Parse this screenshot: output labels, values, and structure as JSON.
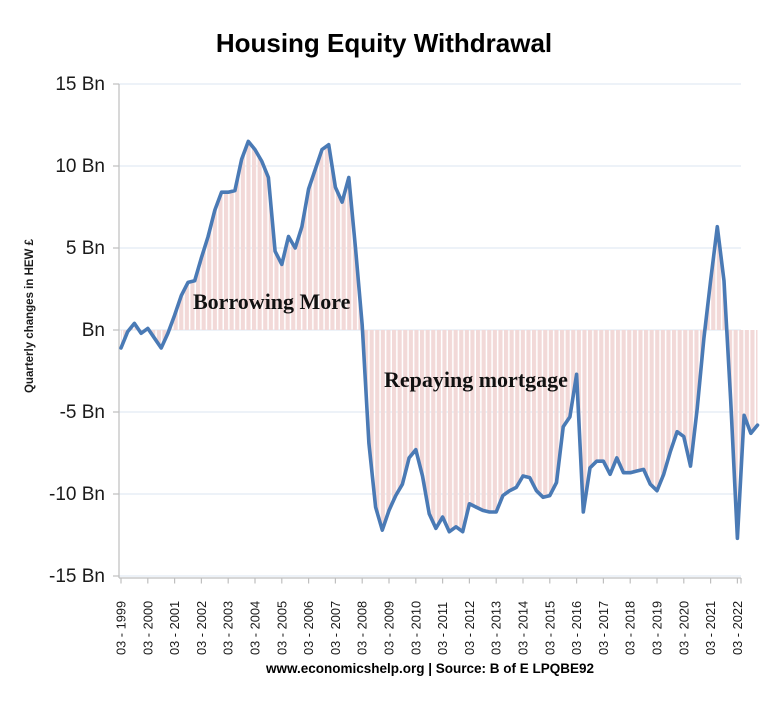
{
  "title": "Housing Equity Withdrawal",
  "footer": "www.economicshelp.org | Source: B of E LPQBE92",
  "chart_data": {
    "type": "line",
    "title": "Housing Equity Withdrawal",
    "ylabel": "Quarterly changes in HEW £",
    "ylim": [
      -15,
      15
    ],
    "grid": true,
    "legend": "none",
    "fill_style": "vertical pink hatch between line and zero",
    "ytick_values": [
      15,
      10,
      5,
      0,
      -5,
      -10,
      -15
    ],
    "ytick_labels": [
      "15  Bn",
      "10  Bn",
      "5  Bn",
      "Bn",
      "-5  Bn",
      "-10  Bn",
      "-15  Bn"
    ],
    "x_unit": "quarter",
    "x_start": "Q1 1999",
    "x_end": "Q4 2022",
    "xtick_every_n_points": 4,
    "xtick_labels": [
      "03 - 1999",
      "03 - 2000",
      "03 - 2001",
      "03 - 2002",
      "03 - 2003",
      "03 - 2004",
      "03 - 2005",
      "03 - 2006",
      "03 - 2007",
      "03 - 2008",
      "03 - 2009",
      "03 - 2010",
      "03 - 2011",
      "03 - 2012",
      "03 - 2013",
      "03 - 2014",
      "03 - 2015",
      "03 - 2016",
      "03 - 2017",
      "03 - 2018",
      "03 - 2019",
      "03 - 2020",
      "03 - 2021",
      "03 - 2022"
    ],
    "series": [
      {
        "name": "Quarterly HEW £Bn",
        "values": [
          -1.1,
          -0.1,
          0.4,
          -0.2,
          0.1,
          -0.5,
          -1.1,
          -0.2,
          0.9,
          2.1,
          2.9,
          3.0,
          4.4,
          5.7,
          7.3,
          8.4,
          8.4,
          8.5,
          10.4,
          11.5,
          11.0,
          10.3,
          9.3,
          4.8,
          4.0,
          5.7,
          5.0,
          6.3,
          8.6,
          9.8,
          11.0,
          11.3,
          8.7,
          7.8,
          9.3,
          5.0,
          0.3,
          -6.9,
          -10.8,
          -12.2,
          -11.0,
          -10.1,
          -9.4,
          -7.8,
          -7.3,
          -8.9,
          -11.2,
          -12.1,
          -11.4,
          -12.3,
          -12.0,
          -12.3,
          -10.6,
          -10.8,
          -11.0,
          -11.1,
          -11.1,
          -10.1,
          -9.8,
          -9.6,
          -8.9,
          -9.0,
          -9.8,
          -10.2,
          -10.1,
          -9.3,
          -5.9,
          -5.3,
          -2.7,
          -11.1,
          -8.4,
          -8.0,
          -8.0,
          -8.8,
          -7.8,
          -8.7,
          -8.7,
          -8.6,
          -8.5,
          -9.4,
          -9.8,
          -8.8,
          -7.4,
          -6.2,
          -6.5,
          -8.3,
          -4.8,
          -0.5,
          3.0,
          6.3,
          3.0,
          -4.3,
          -12.7,
          -5.2,
          -6.3,
          -5.8
        ]
      }
    ],
    "annotations": [
      {
        "text": "Borrowing More",
        "region": "positive area 2001-2007"
      },
      {
        "text": "Repaying mortgage",
        "region": "negative area 2009-2016"
      }
    ],
    "colors": {
      "line": "#4a7ab5",
      "hatch_fill": "#f2d9d8",
      "gridline": "#dbe4f0",
      "axis": "#bfbfbf",
      "text": "#1a1a1a"
    }
  }
}
